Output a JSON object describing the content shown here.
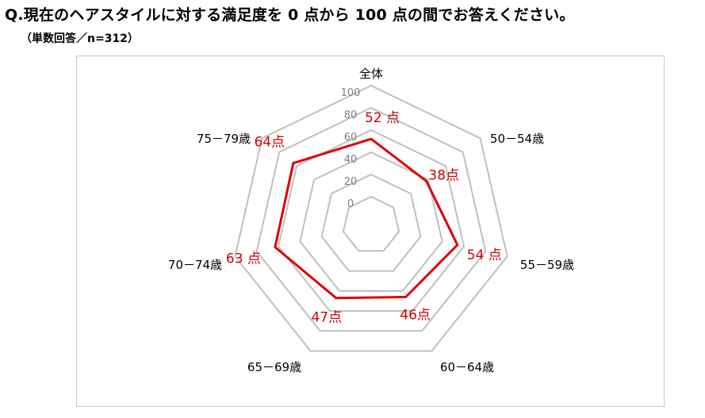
{
  "question": "Q.現在のヘアスタイルに対する満足度を 0 点から 100 点の間でお答えください。",
  "note": "（単数回答／n=312）",
  "colors": {
    "grid": "#bfbfbf",
    "series": "#e00000",
    "value_label": "#cc0000",
    "tick_label": "#808080",
    "category_label": "#000000"
  },
  "chart_data": {
    "type": "radar",
    "categories": [
      "全体",
      "50－54歳",
      "55－59歳",
      "60－64歳",
      "65－69歳",
      "70－74歳",
      "75－79歳"
    ],
    "series": [
      {
        "values": [
          52,
          38,
          54,
          46,
          47,
          63,
          64
        ]
      }
    ],
    "value_labels": [
      "52 点",
      "38点",
      "54 点",
      "46点",
      "47点",
      "63 点",
      "64点"
    ],
    "ticks": [
      0,
      20,
      40,
      60,
      80,
      100
    ],
    "tick_labels": [
      "0",
      "20",
      "40",
      "60",
      "80",
      "100"
    ],
    "range": [
      0,
      100
    ],
    "legend": "none"
  }
}
